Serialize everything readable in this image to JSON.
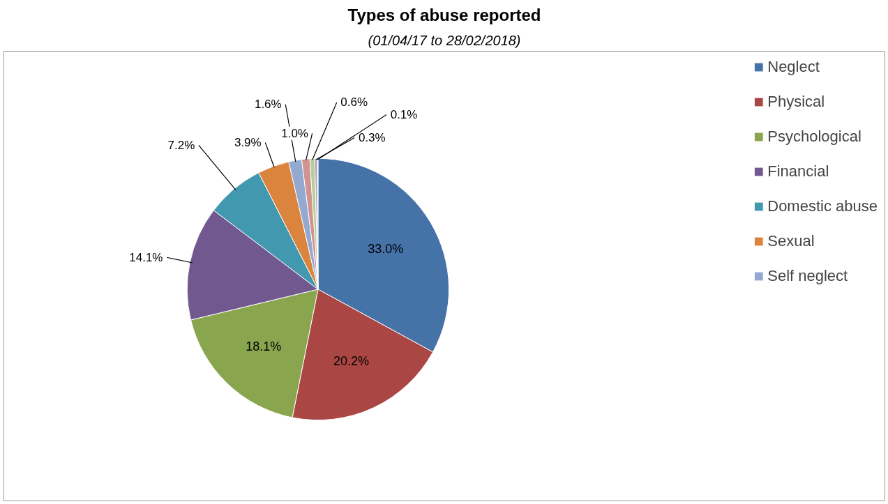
{
  "chart_data": {
    "type": "pie",
    "title": "Types of abuse reported",
    "subtitle": "(01/04/17 to 28/02/2018)",
    "categories": [
      "Neglect",
      "Physical",
      "Psychological",
      "Financial",
      "Domestic abuse",
      "Sexual",
      "Self neglect",
      null,
      null,
      null,
      null
    ],
    "values": [
      33.0,
      20.2,
      18.1,
      14.1,
      7.2,
      3.9,
      1.6,
      1.0,
      0.6,
      0.3,
      0.1
    ],
    "value_labels": [
      "33.0%",
      "20.2%",
      "18.1%",
      "14.1%",
      "7.2%",
      "3.9%",
      "1.6%",
      "1.0%",
      "0.6%",
      "0.3%",
      "0.1%"
    ],
    "colors": [
      "#4572a7",
      "#aa4643",
      "#89a54e",
      "#71588f",
      "#4198af",
      "#db843d",
      "#93a9cf",
      "#d19392",
      "#b9cd96",
      "#a99bbd",
      "#92c3d4"
    ],
    "legend": "right"
  }
}
